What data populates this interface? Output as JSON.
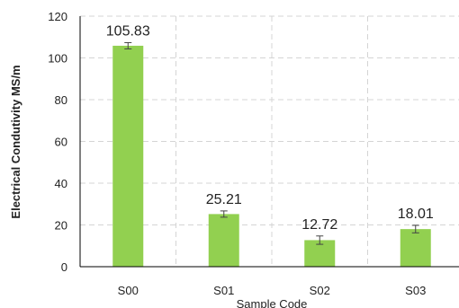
{
  "chart_data": {
    "type": "bar",
    "categories": [
      "S00",
      "S01",
      "S02",
      "S03"
    ],
    "values": [
      105.83,
      25.21,
      12.72,
      18.01
    ],
    "errors": [
      1.5,
      1.5,
      2.0,
      1.8
    ],
    "data_labels": [
      "105.83",
      "25.21",
      "12.72",
      "18.01"
    ],
    "title": "",
    "xlabel": "Sample Code",
    "ylabel": "Electrical Condutivity MS/m",
    "ylim": [
      0,
      120
    ],
    "yticks": [
      0,
      20,
      40,
      60,
      80,
      100,
      120
    ],
    "grid": true,
    "legend": "none",
    "bar_color": "#92d050",
    "error_color": "#444444"
  }
}
